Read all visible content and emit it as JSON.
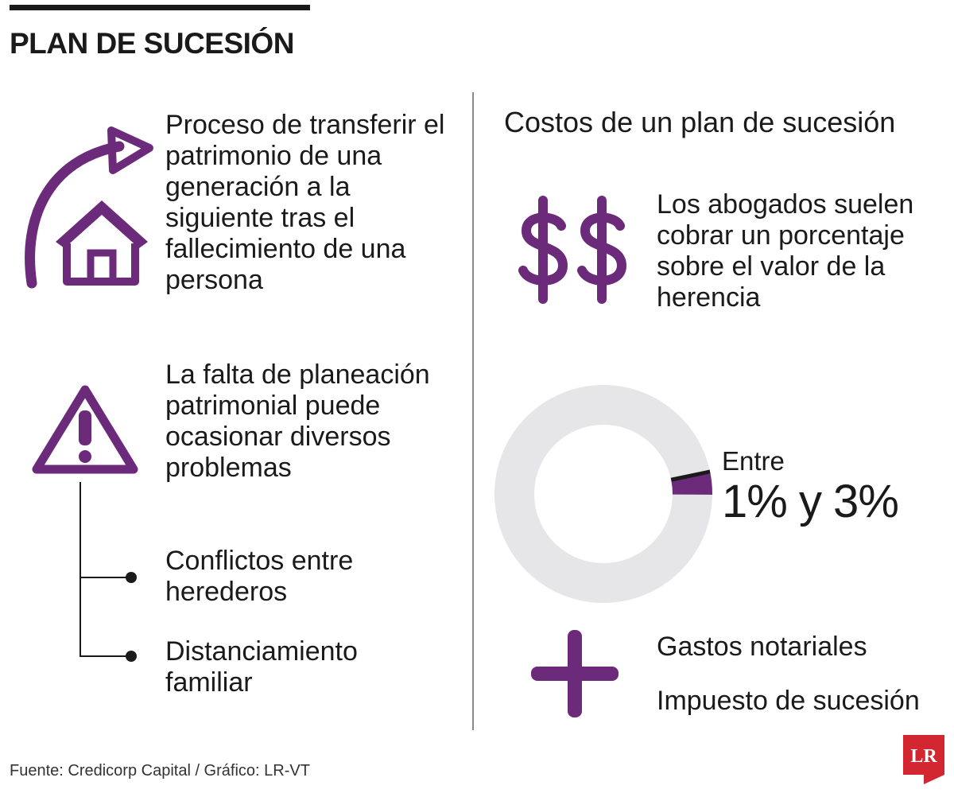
{
  "title": "PLAN DE SUCESIÓN",
  "left": {
    "definition": "Proceso de transferir el patrimonio de una generación a la siguiente tras el fallecimiento de una persona",
    "warning": "La falta de planeación patrimonial puede ocasionar diversos problemas",
    "problems": [
      "Conflictos entre herederos",
      "Distanciamiento familiar"
    ]
  },
  "right": {
    "heading": "Costos de un plan de sucesión",
    "lawyers": "Los abogados suelen cobrar un porcentaje sobre el valor de la herencia",
    "range_prefix": "Entre",
    "range_value": "1% y 3%",
    "range_fraction": {
      "min": 0.01,
      "max": 0.03
    },
    "extras": [
      "Gastos notariales",
      "Impuesto de sucesión"
    ]
  },
  "source": "Fuente: Credicorp Capital / Gráfico: LR-VT",
  "logo_text": "LR",
  "colors": {
    "accent": "#6b2a7a",
    "text": "#1a1a1a",
    "ring_bg": "#e6e6e8",
    "logo_red": "#d22630"
  },
  "icons": {
    "definition": "house-with-arrow-icon",
    "warning": "warning-triangle-icon",
    "lawyers": "dollar-signs-icon",
    "extras": "plus-icon"
  }
}
